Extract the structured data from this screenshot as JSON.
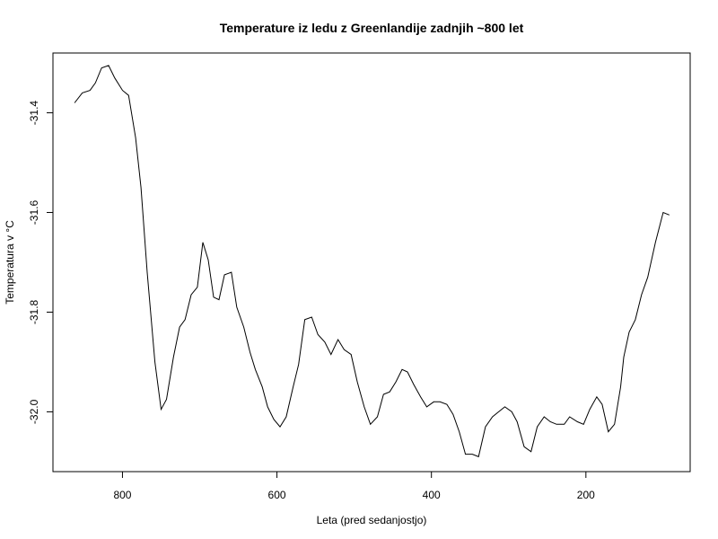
{
  "chart_data": {
    "type": "line",
    "title": "Temperature iz ledu z Greenlandije zadnjih ~800 let",
    "xlabel": "Leta (pred sedanjostjo)",
    "ylabel": "Temperatura v °C",
    "x_reversed": true,
    "xlim": [
      890,
      65
    ],
    "ylim": [
      -32.12,
      -31.28
    ],
    "x_ticks": [
      800,
      600,
      400,
      200
    ],
    "x_tick_labels": [
      "800",
      "600",
      "400",
      "200"
    ],
    "y_ticks": [
      -31.4,
      -31.6,
      -31.8,
      -32.0
    ],
    "y_tick_labels": [
      "-31.4",
      "-31.6",
      "-31.8",
      "-32.0"
    ],
    "grid": false,
    "legend": "none",
    "series": [
      {
        "color": "#000000",
        "x": [
          862,
          852,
          842,
          835,
          827,
          818,
          810,
          800,
          792,
          783,
          776,
          768,
          758,
          750,
          743,
          734,
          726,
          719,
          711,
          703,
          696,
          689,
          682,
          675,
          668,
          659,
          652,
          643,
          635,
          628,
          619,
          612,
          604,
          596,
          588,
          579,
          572,
          564,
          555,
          547,
          538,
          530,
          521,
          513,
          504,
          496,
          487,
          479,
          470,
          462,
          454,
          446,
          438,
          431,
          423,
          414,
          406,
          397,
          389,
          380,
          372,
          364,
          356,
          347,
          339,
          330,
          321,
          313,
          305,
          296,
          289,
          280,
          271,
          263,
          254,
          246,
          238,
          228,
          221,
          211,
          203,
          195,
          186,
          179,
          171,
          163,
          155,
          151,
          144,
          136,
          128,
          120,
          110,
          100,
          92
        ],
        "y": [
          -31.38,
          -31.36,
          -31.355,
          -31.34,
          -31.31,
          -31.305,
          -31.33,
          -31.355,
          -31.365,
          -31.45,
          -31.55,
          -31.72,
          -31.9,
          -31.995,
          -31.975,
          -31.89,
          -31.83,
          -31.815,
          -31.765,
          -31.75,
          -31.66,
          -31.695,
          -31.77,
          -31.775,
          -31.725,
          -31.72,
          -31.79,
          -31.83,
          -31.88,
          -31.915,
          -31.95,
          -31.99,
          -32.015,
          -32.03,
          -32.01,
          -31.95,
          -31.905,
          -31.815,
          -31.81,
          -31.845,
          -31.86,
          -31.885,
          -31.855,
          -31.875,
          -31.885,
          -31.94,
          -31.99,
          -32.025,
          -32.01,
          -31.965,
          -31.96,
          -31.94,
          -31.915,
          -31.92,
          -31.945,
          -31.97,
          -31.99,
          -31.98,
          -31.98,
          -31.985,
          -32.005,
          -32.04,
          -32.085,
          -32.085,
          -32.09,
          -32.03,
          -32.01,
          -32.0,
          -31.99,
          -32.0,
          -32.02,
          -32.07,
          -32.08,
          -32.03,
          -32.01,
          -32.02,
          -32.025,
          -32.025,
          -32.01,
          -32.02,
          -32.025,
          -31.995,
          -31.97,
          -31.985,
          -32.04,
          -32.025,
          -31.95,
          -31.89,
          -31.84,
          -31.815,
          -31.765,
          -31.73,
          -31.66,
          -31.6,
          -31.605
        ]
      }
    ]
  }
}
